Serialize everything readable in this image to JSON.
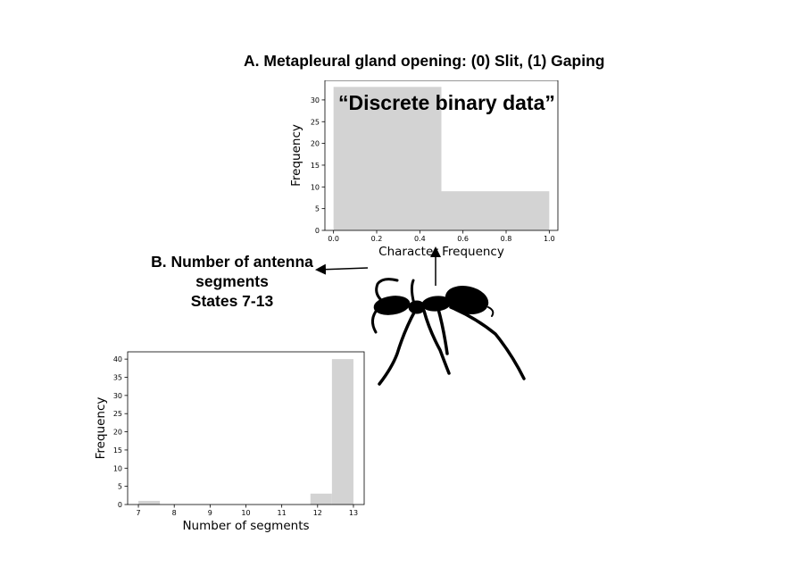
{
  "figure": {
    "panel_a_title": "A.  Metapleural gland opening: (0) Slit, (1) Gaping",
    "callout": "“Discrete binary data”",
    "panel_b_title_lines": [
      "B. Number of antenna",
      "segments",
      "States 7-13"
    ],
    "silhouette_icon": "ant-silhouette"
  },
  "chart_data": [
    {
      "type": "bar",
      "panel": "A",
      "xlabel": "Character Frequency",
      "ylabel": "Frequency",
      "xlim": [
        -0.04,
        1.04
      ],
      "ylim": [
        0,
        34.5
      ],
      "xticks": [
        "0.0",
        "0.2",
        "0.4",
        "0.6",
        "0.8",
        "1.0"
      ],
      "xtick_values": [
        0.0,
        0.2,
        0.4,
        0.6,
        0.8,
        1.0
      ],
      "yticks": [
        "0",
        "5",
        "10",
        "15",
        "20",
        "25",
        "30"
      ],
      "ytick_values": [
        0,
        5,
        10,
        15,
        20,
        25,
        30
      ],
      "bins": [
        {
          "start": 0.0,
          "end": 0.5,
          "value": 33
        },
        {
          "start": 0.5,
          "end": 1.0,
          "value": 9
        }
      ],
      "bar_color": "#d3d3d3",
      "grid": false
    },
    {
      "type": "bar",
      "panel": "B",
      "xlabel": "Number of segments",
      "ylabel": "Frequency",
      "xlim": [
        6.7,
        13.3
      ],
      "ylim": [
        0,
        42
      ],
      "xticks": [
        "7",
        "8",
        "9",
        "10",
        "11",
        "12",
        "13"
      ],
      "xtick_values": [
        7,
        8,
        9,
        10,
        11,
        12,
        13
      ],
      "yticks": [
        "0",
        "5",
        "10",
        "15",
        "20",
        "25",
        "30",
        "35",
        "40"
      ],
      "ytick_values": [
        0,
        5,
        10,
        15,
        20,
        25,
        30,
        35,
        40
      ],
      "bins": [
        {
          "start": 7.0,
          "end": 7.6,
          "value": 1
        },
        {
          "start": 7.6,
          "end": 8.2,
          "value": 0
        },
        {
          "start": 8.2,
          "end": 8.8,
          "value": 0
        },
        {
          "start": 8.8,
          "end": 9.4,
          "value": 0
        },
        {
          "start": 9.4,
          "end": 10.0,
          "value": 0
        },
        {
          "start": 10.0,
          "end": 10.6,
          "value": 0
        },
        {
          "start": 10.6,
          "end": 11.2,
          "value": 0
        },
        {
          "start": 11.2,
          "end": 11.8,
          "value": 0
        },
        {
          "start": 11.8,
          "end": 12.4,
          "value": 3
        },
        {
          "start": 12.4,
          "end": 13.0,
          "value": 40
        }
      ],
      "bar_color": "#d3d3d3",
      "grid": false
    }
  ]
}
